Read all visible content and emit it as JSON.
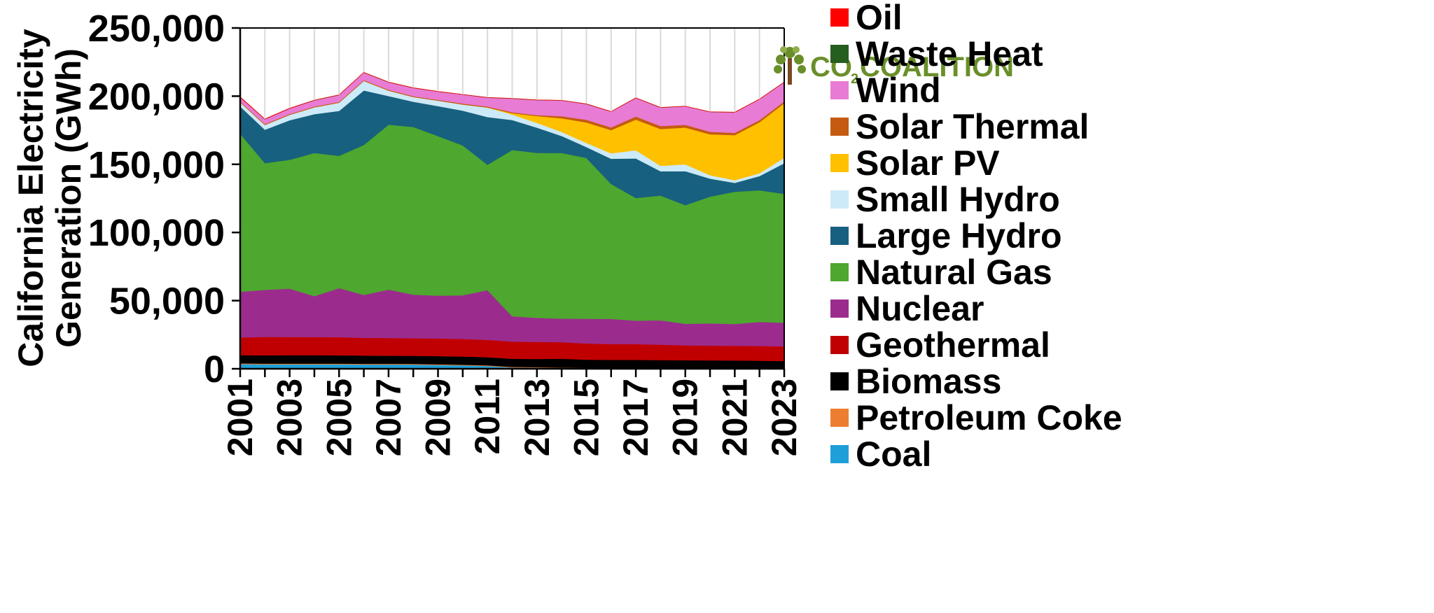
{
  "chart_data": {
    "type": "area",
    "stacked": true,
    "ylabel_lines": [
      "California Electricity",
      "Generation (GWh)"
    ],
    "ylim": [
      0,
      250000
    ],
    "yticks": [
      0,
      50000,
      100000,
      150000,
      200000,
      250000
    ],
    "ytick_labels": [
      "0",
      "50,000",
      "100,000",
      "150,000",
      "200,000",
      "250,000"
    ],
    "x": [
      2001,
      2002,
      2003,
      2004,
      2005,
      2006,
      2007,
      2008,
      2009,
      2010,
      2011,
      2012,
      2013,
      2014,
      2015,
      2016,
      2017,
      2018,
      2019,
      2020,
      2021,
      2022,
      2023
    ],
    "xtick_labels": [
      "2001",
      "2003",
      "2005",
      "2007",
      "2009",
      "2011",
      "2013",
      "2015",
      "2017",
      "2019",
      "2021",
      "2023"
    ],
    "grid": "vertical",
    "legend_position": "right",
    "series": [
      {
        "name": "Coal",
        "color": "#1f9fd8",
        "values": [
          3500,
          3300,
          3300,
          3300,
          3300,
          3200,
          3200,
          3100,
          2800,
          2500,
          2000,
          1000,
          800,
          500,
          300,
          300,
          300,
          300,
          200,
          200,
          200,
          200,
          200
        ]
      },
      {
        "name": "Petroleum Coke",
        "color": "#ed7d31",
        "values": [
          500,
          500,
          500,
          500,
          500,
          500,
          500,
          500,
          500,
          500,
          500,
          400,
          400,
          400,
          400,
          300,
          300,
          300,
          300,
          300,
          300,
          300,
          300
        ]
      },
      {
        "name": "Biomass",
        "color": "#000000",
        "values": [
          6000,
          6100,
          6200,
          6200,
          6100,
          6000,
          5900,
          5900,
          6000,
          6000,
          6000,
          6000,
          6000,
          6500,
          6000,
          6000,
          6000,
          5800,
          5800,
          5700,
          5600,
          5400,
          5200
        ]
      },
      {
        "name": "Geothermal",
        "color": "#c00000",
        "values": [
          13000,
          13500,
          13300,
          13300,
          13300,
          13000,
          13000,
          12900,
          12900,
          12900,
          12700,
          12600,
          12500,
          12100,
          11900,
          11500,
          11500,
          11300,
          10900,
          10800,
          10800,
          10900,
          10700
        ]
      },
      {
        "name": "Nuclear",
        "color": "#9b2c8e",
        "values": [
          33500,
          34500,
          35500,
          30000,
          36000,
          31500,
          35500,
          32000,
          31500,
          32000,
          36500,
          18500,
          17700,
          17300,
          18100,
          18500,
          17200,
          17900,
          15800,
          16300,
          16000,
          17600,
          17400
        ]
      },
      {
        "name": "Natural Gas",
        "color": "#4ea72e",
        "values": [
          116000,
          93000,
          94500,
          105000,
          97000,
          110000,
          121000,
          123000,
          117000,
          110000,
          92000,
          122000,
          121000,
          121500,
          118000,
          99000,
          90000,
          91500,
          87000,
          93000,
          97000,
          96500,
          94500
        ]
      },
      {
        "name": "Large Hydro",
        "color": "#17607f",
        "values": [
          20000,
          24500,
          29000,
          28500,
          33000,
          40000,
          21000,
          18500,
          22000,
          25500,
          35000,
          22000,
          18500,
          12500,
          8000,
          18500,
          29000,
          17800,
          25000,
          13200,
          6500,
          10500,
          22500
        ]
      },
      {
        "name": "Small Hydro",
        "color": "#cdeaf8",
        "values": [
          3000,
          3500,
          4000,
          5000,
          6000,
          7000,
          4000,
          3500,
          4000,
          4500,
          7000,
          4000,
          3500,
          3000,
          3000,
          4000,
          6000,
          4000,
          5000,
          2500,
          2000,
          2000,
          4000
        ]
      },
      {
        "name": "Solar PV",
        "color": "#ffc000",
        "values": [
          0,
          0,
          0,
          0,
          0,
          0,
          0,
          0,
          0,
          0,
          0,
          1000,
          5000,
          10000,
          15000,
          17000,
          22500,
          27000,
          27000,
          30000,
          33000,
          37500,
          40000
        ]
      },
      {
        "name": "Solar Thermal",
        "color": "#c55a11",
        "values": [
          600,
          600,
          600,
          600,
          600,
          600,
          600,
          600,
          600,
          700,
          700,
          700,
          700,
          1500,
          2000,
          2000,
          2300,
          2200,
          2000,
          1900,
          1700,
          1500,
          1400
        ]
      },
      {
        "name": "Wind",
        "color": "#e87bd4",
        "values": [
          3000,
          3500,
          4000,
          4500,
          5000,
          5500,
          5500,
          6000,
          6000,
          6500,
          6500,
          10000,
          11000,
          11500,
          11500,
          11500,
          13500,
          13500,
          13500,
          14500,
          15000,
          15300,
          14000
        ]
      },
      {
        "name": "Waste Heat",
        "color": "#255e1e",
        "values": [
          100,
          100,
          100,
          100,
          100,
          100,
          100,
          100,
          100,
          100,
          100,
          100,
          100,
          100,
          100,
          100,
          100,
          100,
          100,
          100,
          100,
          100,
          100
        ]
      },
      {
        "name": "Oil",
        "color": "#ff0000",
        "values": [
          300,
          200,
          200,
          100,
          100,
          100,
          100,
          100,
          100,
          100,
          100,
          100,
          100,
          100,
          100,
          100,
          100,
          100,
          100,
          100,
          100,
          100,
          100
        ]
      }
    ]
  },
  "logo": {
    "text_a": "CO",
    "text_sub": "2",
    "text_b": "COALITION"
  }
}
